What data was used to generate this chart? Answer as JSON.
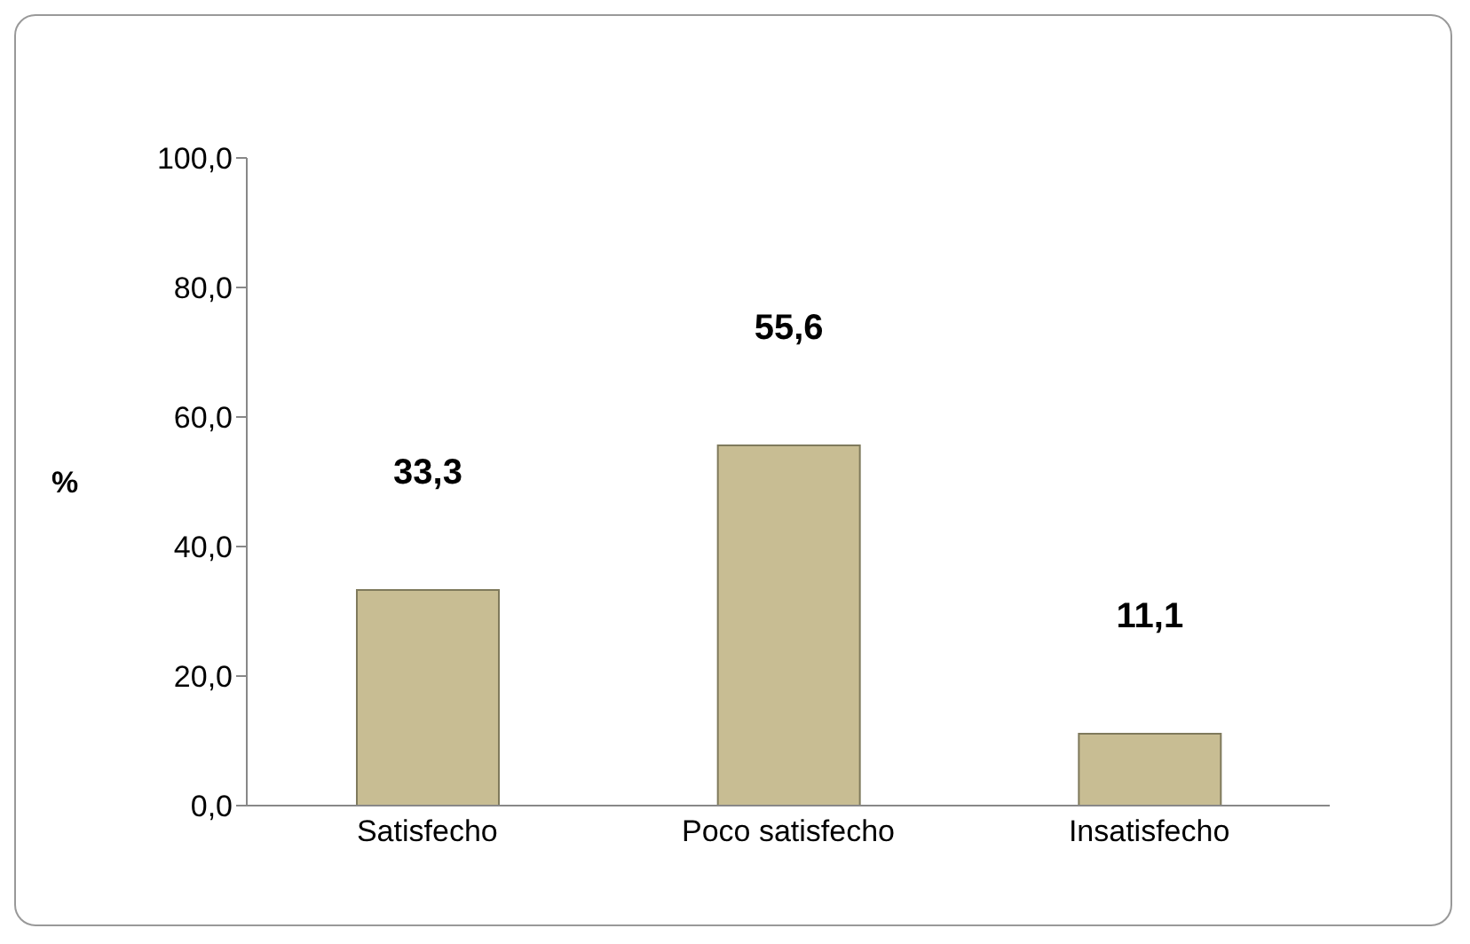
{
  "chart_data": {
    "type": "bar",
    "ylabel": "%",
    "categories": [
      "Satisfecho",
      "Poco satisfecho",
      "Insatisfecho"
    ],
    "values": [
      33.3,
      55.6,
      11.1
    ],
    "color": "#c8bd93",
    "value_labels": [
      "33,3",
      "55,6",
      "11,1"
    ],
    "ylim": [
      0,
      100
    ],
    "yticks": [
      {
        "value": 0,
        "label": "0,0"
      },
      {
        "value": 20,
        "label": "20,0"
      },
      {
        "value": 40,
        "label": "40,0"
      },
      {
        "value": 60,
        "label": "60,0"
      },
      {
        "value": 80,
        "label": "80,0"
      },
      {
        "value": 100,
        "label": "100,0"
      }
    ],
    "grid": false,
    "legend": false
  }
}
